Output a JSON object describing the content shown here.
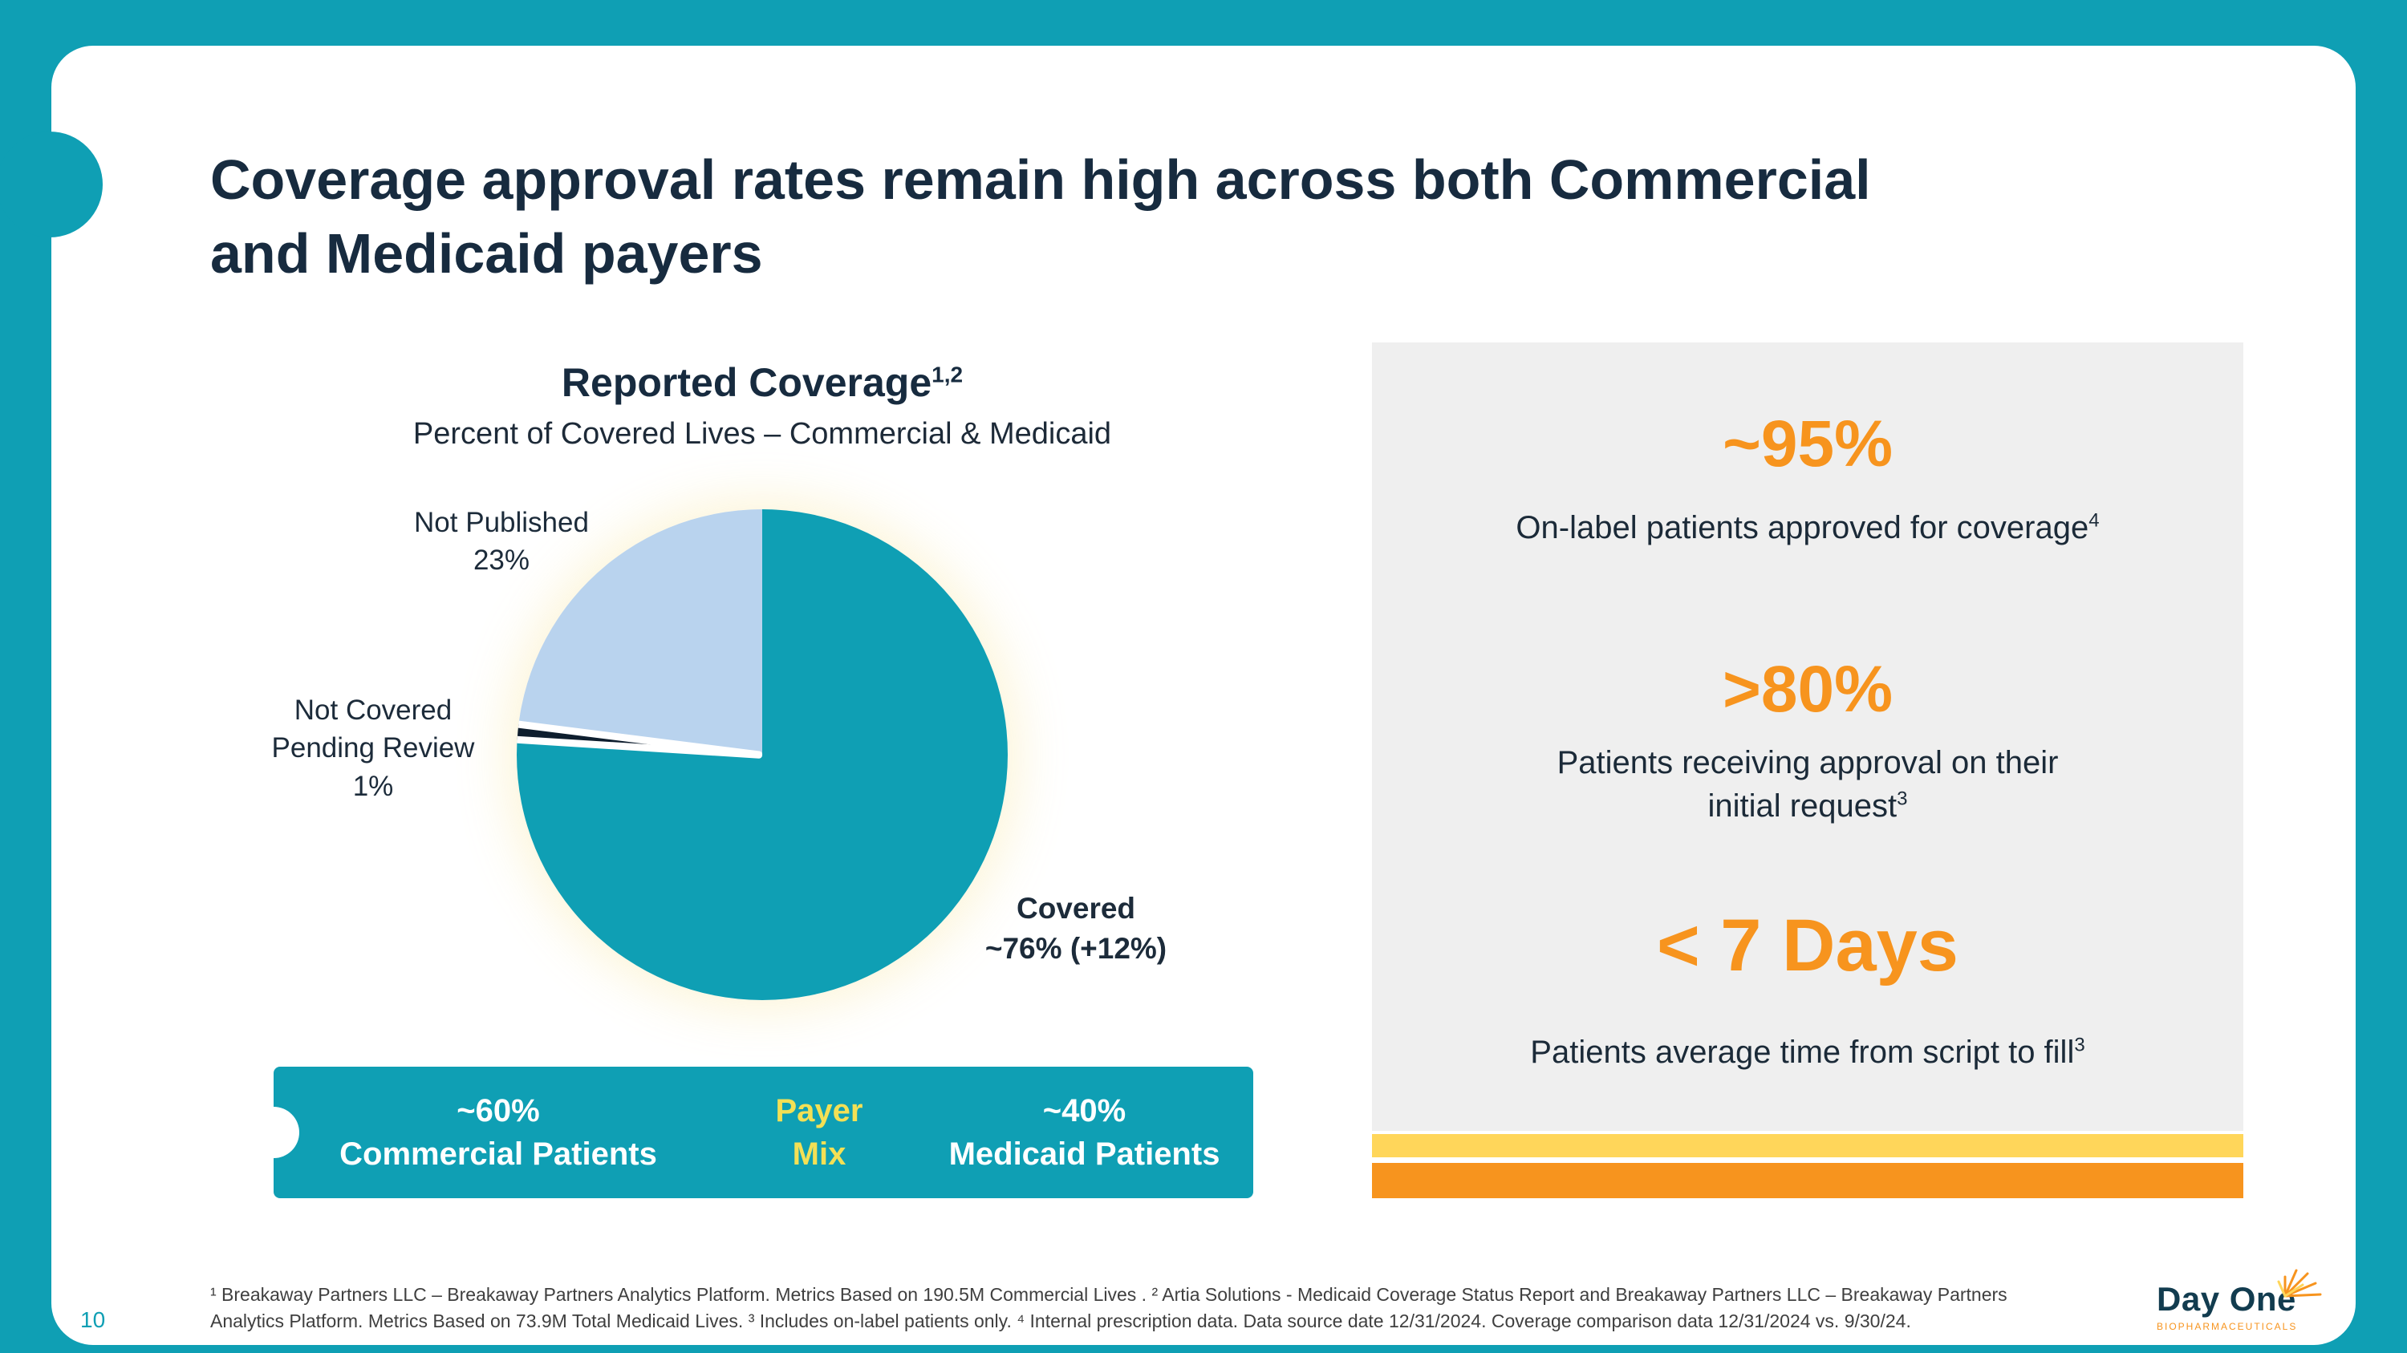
{
  "slide": {
    "title_line1": "Coverage approval rates remain high across both Commercial",
    "title_line2": "and Medicaid payers",
    "page_number": "10"
  },
  "chart": {
    "title": "Reported Coverage",
    "title_sup": "1,2",
    "subtitle": "Percent of Covered Lives – Commercial & Medicaid",
    "labels": {
      "not_published_line1": "Not Published",
      "not_published_line2": "23%",
      "not_covered_line1": "Not Covered",
      "not_covered_line2": "Pending Review",
      "not_covered_line3": "1%",
      "covered_line1": "Covered",
      "covered_line2": "~76% (+12%)"
    }
  },
  "chart_data": {
    "type": "pie",
    "title": "Reported Coverage",
    "subtitle": "Percent of Covered Lives – Commercial & Medicaid",
    "unit": "%",
    "start_angle": "top",
    "direction": "clockwise",
    "slices": [
      {
        "label": "Covered",
        "value": 76,
        "change": "+12%",
        "color": "#0f9fb4"
      },
      {
        "label": "Not Covered Pending Review",
        "value": 1,
        "color": "#0e1e2e"
      },
      {
        "label": "Not Published",
        "value": 23,
        "color": "#b9d3ee"
      }
    ]
  },
  "payer_mix": {
    "left_value": "~60%",
    "left_label": "Commercial Patients",
    "center_line1": "Payer",
    "center_line2": "Mix",
    "right_value": "~40%",
    "right_label": "Medicaid Patients"
  },
  "stats": [
    {
      "value": "~95%",
      "desc": "On-label patients approved for coverage",
      "sup": "4"
    },
    {
      "value": ">80%",
      "desc_line1": "Patients receiving approval on their",
      "desc_line2": "initial request",
      "sup": "3"
    },
    {
      "value": "< 7 Days",
      "desc": "Patients average time from script to fill",
      "sup": "3"
    }
  ],
  "footnotes": {
    "line1": "¹ Breakaway Partners LLC – Breakaway Partners Analytics Platform. Metrics Based on 190.5M Commercial Lives . ² Artia Solutions - Medicaid Coverage Status Report and Breakaway Partners LLC – Breakaway Partners",
    "line2": "Analytics Platform. Metrics Based on 73.9M Total Medicaid Lives.  ³ Includes on-label patients only.  ⁴ Internal prescription data. Data source date 12/31/2024. Coverage comparison data 12/31/2024 vs. 9/30/24."
  },
  "logo": {
    "wordmark": "Day One",
    "subtitle": "BIOPHARMACEUTICALS"
  },
  "colors": {
    "teal": "#0f9fb4",
    "navy": "#172b3f",
    "orange": "#f7941e",
    "stripe_yellow": "#ffd65a",
    "payer_mix_yellow": "#f3e055",
    "light_blue": "#b9d3ee",
    "dark_slice": "#0e1e2e",
    "panel_gray": "#efefef"
  }
}
